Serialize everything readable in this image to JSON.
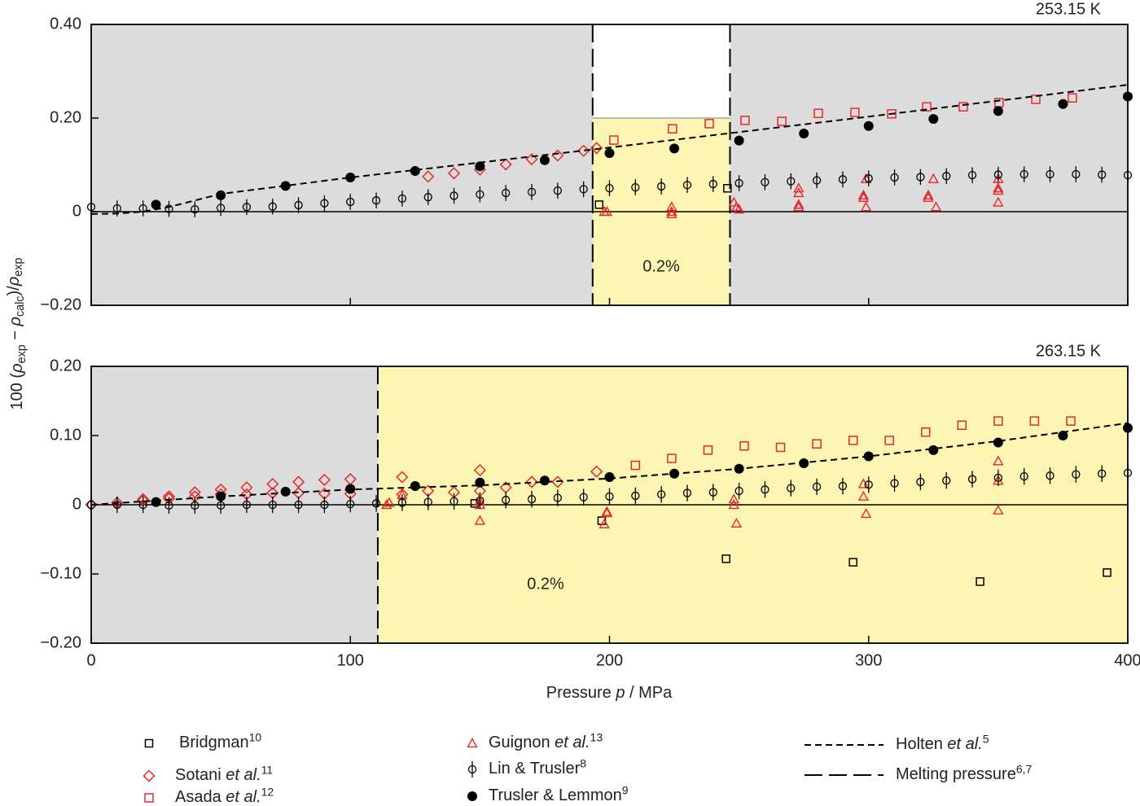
{
  "legend": [
    {
      "name": [
        {
          "text": "Bridgman"
        }
      ],
      "ref": "10",
      "marker": "open-square",
      "color": "#000000"
    },
    {
      "name": [
        {
          "text": "Sotani "
        },
        {
          "text": "et al.",
          "italic": true
        }
      ],
      "ref": "11",
      "marker": "open-diamond",
      "color": "#e8262a"
    },
    {
      "name": [
        {
          "text": "Asada "
        },
        {
          "text": "et al.",
          "italic": true
        }
      ],
      "ref": "12",
      "marker": "open-square",
      "color": "#e8262a"
    },
    {
      "name": [
        {
          "text": "Guignon "
        },
        {
          "text": "et al.",
          "italic": true
        }
      ],
      "ref": "13",
      "marker": "open-triangle",
      "color": "#e8262a"
    },
    {
      "name": [
        {
          "text": "Lin & Trusler"
        }
      ],
      "ref": "8",
      "marker": "circle-bar",
      "color": "#000000"
    },
    {
      "name": [
        {
          "text": "Trusler & Lemmon"
        }
      ],
      "ref": "9",
      "marker": "filled-circle",
      "color": "#000000"
    },
    {
      "name": [
        {
          "text": "Holten "
        },
        {
          "text": "et al.",
          "italic": true
        }
      ],
      "ref": "5",
      "marker": "short-dash",
      "color": "#000000"
    },
    {
      "name": [
        {
          "text": "Melting pressure"
        }
      ],
      "ref": "6,7",
      "marker": "long-dash",
      "color": "#000000"
    }
  ],
  "chart_data": [
    {
      "type": "scatter",
      "title": "253.15 K",
      "ylabel": [
        {
          "text": "100 ("
        },
        {
          "text": "ρ",
          "italic": true
        },
        {
          "text": "exp",
          "sub": true
        },
        {
          "text": " − "
        },
        {
          "text": "ρ",
          "italic": true
        },
        {
          "text": "calc",
          "sub": true
        },
        {
          "text": ")/"
        },
        {
          "text": "ρ",
          "italic": true
        },
        {
          "text": "exp",
          "sub": true
        }
      ],
      "xlim": [
        0,
        400
      ],
      "ylim": [
        -0.2,
        0.4
      ],
      "xticks": [
        0,
        100,
        200,
        300,
        400
      ],
      "show_xtick_labels": false,
      "yticks": [
        {
          "value": 0.4,
          "label": "0.40"
        },
        {
          "value": 0.2,
          "label": "0.20"
        },
        0,
        {
          "value": -0.2,
          "label": "−0.20"
        }
      ],
      "background": "#dcdcdc",
      "band": 0.2,
      "band_color": "#fdf6b2",
      "melting_pressures": [
        193.5,
        246.5
      ],
      "liquid_side": "between",
      "annotation": "0.2%",
      "series": [
        {
          "x": [
            196,
            245.5
          ],
          "values": [
            0.015,
            0.05
          ]
        },
        {
          "x": [
            130,
            140,
            150,
            160,
            170,
            180,
            190,
            195
          ],
          "values": [
            0.075,
            0.082,
            0.09,
            0.101,
            0.112,
            0.12,
            0.13,
            0.136
          ]
        },
        {
          "x": [
            201.7,
            224.3,
            238.5,
            252.3,
            266.5,
            280.6,
            294.7,
            308.9,
            322.4,
            336.5,
            350.3,
            364.5,
            378.6
          ],
          "values": [
            0.153,
            0.177,
            0.188,
            0.195,
            0.193,
            0.21,
            0.212,
            0.209,
            0.224,
            0.224,
            0.233,
            0.24,
            0.243
          ]
        },
        {
          "x": [
            198,
            199,
            224,
            224,
            224,
            248,
            249,
            250,
            273,
            273,
            273,
            273,
            298,
            298,
            299,
            299,
            323,
            323,
            325,
            326,
            350,
            350,
            350,
            350
          ],
          "values": [
            0.0,
            0.0,
            0.0,
            0.01,
            -0.005,
            0.02,
            0.01,
            0.005,
            0.05,
            0.04,
            0.015,
            0.01,
            0.035,
            0.03,
            0.01,
            0.07,
            0.035,
            0.03,
            0.07,
            0.01,
            0.07,
            0.05,
            0.045,
            0.02
          ]
        },
        {
          "x": [
            0,
            10,
            20,
            30,
            40,
            50,
            60,
            70,
            80,
            90,
            100,
            110,
            120,
            130,
            140,
            150,
            160,
            170,
            180,
            190,
            200,
            210,
            220,
            230,
            240,
            250,
            260,
            270,
            280,
            290,
            300,
            310,
            320,
            330,
            340,
            350,
            360,
            370,
            380,
            390,
            400
          ],
          "values": [
            0.01,
            0.007,
            0.007,
            0.006,
            0.005,
            0.008,
            0.01,
            0.011,
            0.014,
            0.018,
            0.021,
            0.024,
            0.028,
            0.031,
            0.034,
            0.037,
            0.04,
            0.042,
            0.045,
            0.048,
            0.05,
            0.052,
            0.054,
            0.057,
            0.059,
            0.061,
            0.063,
            0.065,
            0.067,
            0.069,
            0.071,
            0.073,
            0.074,
            0.076,
            0.078,
            0.079,
            0.08,
            0.08,
            0.08,
            0.079,
            0.078
          ],
          "error": 0.017
        },
        {
          "x": [
            25,
            50,
            75,
            100,
            125,
            150,
            175,
            200,
            225,
            250,
            275,
            300,
            325,
            350,
            375,
            400
          ],
          "values": [
            0.015,
            0.035,
            0.055,
            0.073,
            0.087,
            0.097,
            0.11,
            0.125,
            0.135,
            0.152,
            0.167,
            0.183,
            0.198,
            0.215,
            0.23,
            0.246
          ]
        },
        {
          "x": [
            0,
            10,
            20,
            30,
            50,
            100,
            150,
            200,
            250,
            300,
            350,
            400
          ],
          "values": [
            -0.005,
            -0.004,
            0.0,
            0.01,
            0.038,
            0.073,
            0.105,
            0.137,
            0.17,
            0.203,
            0.237,
            0.271
          ]
        }
      ]
    },
    {
      "type": "scatter",
      "title": "263.15 K",
      "xlabel": [
        {
          "text": "Pressure "
        },
        {
          "text": "p",
          "italic": true
        },
        {
          "text": " / MPa"
        }
      ],
      "xlim": [
        0,
        400
      ],
      "ylim": [
        -0.2,
        0.2
      ],
      "xticks": [
        0,
        100,
        200,
        300,
        400
      ],
      "show_xtick_labels": true,
      "yticks": [
        {
          "value": 0.2,
          "label": "0.20"
        },
        {
          "value": 0.1,
          "label": "0.10"
        },
        0,
        {
          "value": -0.1,
          "label": "−0.10"
        },
        {
          "value": -0.2,
          "label": "−0.20"
        }
      ],
      "background": "#dcdcdc",
      "band": 0.2,
      "band_color": "#fdf6b2",
      "melting_pressures": [
        110.6
      ],
      "liquid_side": "above",
      "annotation": "0.2%",
      "series": [
        {
          "x": [
            148,
            197,
            245,
            294,
            343,
            392
          ],
          "values": [
            0.002,
            -0.023,
            -0.078,
            -0.083,
            -0.111,
            -0.098
          ]
        },
        {
          "x": [
            0,
            10,
            20,
            30,
            40,
            50,
            60,
            70,
            80,
            90,
            100,
            120,
            150,
            20,
            30,
            40,
            50,
            60,
            70,
            80,
            90,
            100,
            120,
            130,
            140,
            150,
            160,
            170,
            180,
            195
          ],
          "values": [
            0,
            0.003,
            0.008,
            0.012,
            0.018,
            0.022,
            0.025,
            0.03,
            0.033,
            0.036,
            0.037,
            0.04,
            0.05,
            0.006,
            0.009,
            0.012,
            0.015,
            0.015,
            0.017,
            0.017,
            0.016,
            0.016,
            0.015,
            0.02,
            0.018,
            0.02,
            0.025,
            0.033,
            0.033,
            0.048
          ]
        },
        {
          "x": [
            210,
            224,
            238,
            252,
            266,
            280,
            294,
            308,
            322,
            336,
            350,
            364,
            378
          ],
          "values": [
            0.057,
            0.067,
            0.079,
            0.085,
            0.083,
            0.088,
            0.093,
            0.093,
            0.105,
            0.115,
            0.121,
            0.121,
            0.121
          ]
        },
        {
          "x": [
            114,
            115,
            120,
            150,
            150,
            150,
            198,
            199,
            199,
            248,
            248,
            249,
            298,
            298,
            299,
            350,
            350,
            350
          ],
          "values": [
            0,
            0.003,
            0.014,
            0.005,
            0,
            -0.023,
            -0.028,
            -0.01,
            -0.012,
            0.008,
            0,
            -0.027,
            0.03,
            0.012,
            -0.013,
            0.063,
            0.035,
            -0.008
          ]
        },
        {
          "x": [
            0,
            10,
            20,
            30,
            40,
            50,
            60,
            70,
            80,
            90,
            100,
            110,
            120,
            130,
            140,
            150,
            160,
            170,
            180,
            190,
            200,
            210,
            220,
            230,
            240,
            250,
            260,
            270,
            280,
            290,
            300,
            310,
            320,
            330,
            340,
            350,
            360,
            370,
            380,
            390,
            400
          ],
          "values": [
            0,
            0,
            0,
            -0.001,
            -0.001,
            -0.001,
            0,
            0,
            0,
            0,
            0.001,
            0.002,
            0.003,
            0.004,
            0.005,
            0.006,
            0.007,
            0.008,
            0.01,
            0.011,
            0.012,
            0.013,
            0.015,
            0.017,
            0.018,
            0.02,
            0.022,
            0.024,
            0.026,
            0.027,
            0.029,
            0.031,
            0.033,
            0.035,
            0.037,
            0.039,
            0.041,
            0.042,
            0.044,
            0.045,
            0.046
          ],
          "error": 0.012
        },
        {
          "x": [
            25,
            50,
            75,
            100,
            125,
            150,
            175,
            200,
            225,
            250,
            275,
            300,
            325,
            350,
            375,
            400
          ],
          "values": [
            0.004,
            0.012,
            0.019,
            0.023,
            0.027,
            0.032,
            0.035,
            0.04,
            0.045,
            0.052,
            0.06,
            0.07,
            0.079,
            0.09,
            0.1,
            0.111
          ]
        },
        {
          "x": [
            0,
            25,
            50,
            100,
            150,
            200,
            250,
            300,
            350,
            400
          ],
          "values": [
            0,
            0.006,
            0.012,
            0.022,
            0.028,
            0.038,
            0.052,
            0.07,
            0.092,
            0.118
          ]
        }
      ]
    }
  ]
}
